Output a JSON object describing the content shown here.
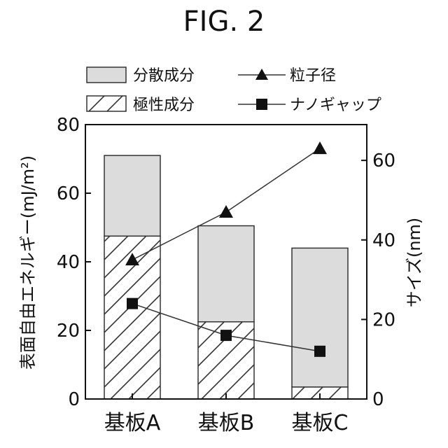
{
  "figure_title": "FIG. 2",
  "chart_data": {
    "type": "bar",
    "subtype": "stacked bar with line overlay on secondary axis",
    "categories": [
      "基板A",
      "基板B",
      "基板C"
    ],
    "bar_series": [
      {
        "name": "極性成分",
        "values": [
          47.5,
          22.5,
          3.5
        ],
        "fill": "hatched"
      },
      {
        "name": "分散成分",
        "values": [
          23.5,
          28.0,
          40.5
        ],
        "fill": "#dcdcdc"
      }
    ],
    "line_series": [
      {
        "name": "粒子径",
        "marker": "triangle",
        "axis": "right",
        "values": [
          35,
          47,
          63
        ]
      },
      {
        "name": "ナノギャップ",
        "marker": "square",
        "axis": "right",
        "values": [
          24,
          16,
          12
        ]
      }
    ],
    "ylabel": "表面自由エネルギー(mJ/m²)",
    "y2label": "サイズ(nm)",
    "ylim": [
      0,
      80
    ],
    "y2lim": [
      0,
      69
    ],
    "yticks": [
      "0",
      "20",
      "40",
      "60",
      "80"
    ],
    "y2ticks": [
      "0",
      "20",
      "40",
      "60"
    ],
    "y2tick_values": [
      0,
      20,
      40,
      60
    ],
    "legend_placement": "top",
    "grid": false
  }
}
